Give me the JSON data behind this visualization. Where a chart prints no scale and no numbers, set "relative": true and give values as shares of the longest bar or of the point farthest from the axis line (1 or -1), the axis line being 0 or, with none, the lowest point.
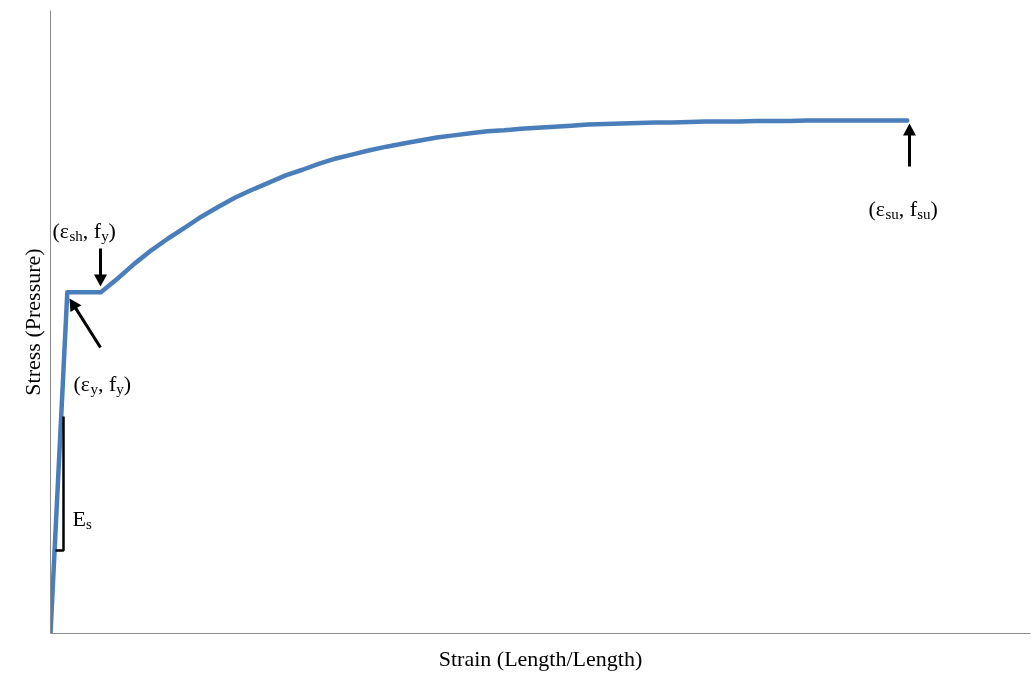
{
  "chart_data": {
    "type": "line",
    "relative": true,
    "xlabel": "Strain (Length/Length)",
    "ylabel": "Stress (Pressure)",
    "categories": [
      null,
      null,
      null,
      null,
      null,
      null,
      null,
      null,
      null,
      null,
      null,
      null,
      null,
      null,
      null,
      null,
      null,
      null,
      null,
      null,
      null,
      null,
      null,
      null,
      null,
      null,
      null,
      null,
      null,
      null,
      null,
      null,
      null,
      null,
      null,
      null,
      null,
      null,
      null,
      null,
      null,
      null,
      null,
      null,
      null,
      null,
      null,
      null,
      null,
      null,
      null,
      null
    ],
    "series": [
      {
        "color": "#4a7ebb",
        "values": [
          0,
          0.665,
          0.665,
          0.665,
          0.692,
          0.721,
          0.747,
          0.77,
          0.791,
          0.813,
          0.832,
          0.85,
          0.865,
          0.879,
          0.893,
          0.904,
          0.916,
          0.926,
          0.934,
          0.942,
          0.949,
          0.955,
          0.961,
          0.967,
          0.971,
          0.975,
          0.979,
          0.981,
          0.984,
          0.986,
          0.988,
          0.99,
          0.992,
          0.993,
          0.994,
          0.995,
          0.996,
          0.996,
          0.997,
          0.998,
          0.998,
          0.998,
          0.999,
          0.999,
          0.999,
          1,
          1,
          1,
          1,
          1,
          1,
          1
        ]
      }
    ],
    "annotations": [
      "(ε$_{sh}$, f$_{y}$)",
      "(ε$_{y}$, f$_{y}$)",
      "(ε$_{su}$, f$_{su}$)",
      "E$_{s}$"
    ]
  }
}
